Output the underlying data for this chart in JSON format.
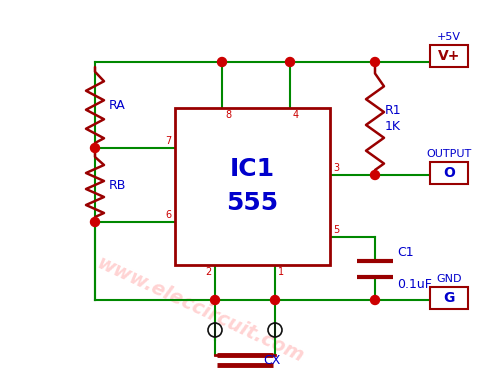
{
  "bg_color": "#ffffff",
  "ic_label1": "IC1",
  "ic_label2": "555",
  "ic_color": "#990000",
  "wire_color": "#008800",
  "resistor_color": "#990000",
  "dot_color": "#cc0000",
  "pin_label_color": "#cc0000",
  "text_color": "#0000cc",
  "connector_color": "#000000",
  "watermark": "www.eleccircuit.com",
  "watermark_color": "#ffcccc",
  "vplus_label": "V+",
  "vplus_title": "+5V",
  "output_box_label": "O",
  "output_title": "OUTPUT",
  "gnd_box_label": "G",
  "gnd_title": "GND",
  "ra_label": "RA",
  "rb_label": "RB",
  "r1_line1": "R1",
  "r1_line2": "1K",
  "c1_line1": "C1",
  "c1_line2": "0.1uF",
  "cx_label": "CX"
}
